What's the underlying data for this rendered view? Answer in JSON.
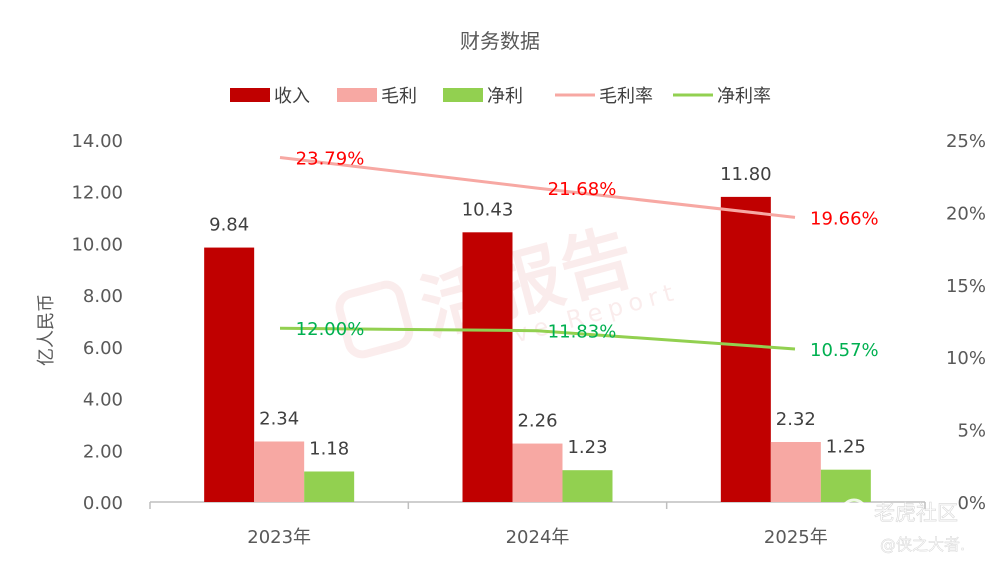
{
  "chart_data": {
    "type": "bar",
    "title": "财务数据",
    "ylabel": "亿人民币",
    "ylim": [
      0,
      14
    ],
    "y2lim": [
      0,
      25
    ],
    "y_ticks": [
      "0.00",
      "2.00",
      "4.00",
      "6.00",
      "8.00",
      "10.00",
      "12.00",
      "14.00"
    ],
    "y2_ticks": [
      "0%",
      "5%",
      "10%",
      "15%",
      "20%",
      "25%"
    ],
    "categories": [
      "2023年",
      "2024年",
      "2025年"
    ],
    "legend_position": "top",
    "series": [
      {
        "name": "收入",
        "kind": "bar",
        "color": "#c00000",
        "values": [
          9.84,
          10.43,
          11.8
        ],
        "labels": [
          "9.84",
          "10.43",
          "11.80"
        ]
      },
      {
        "name": "毛利",
        "kind": "bar",
        "color": "#f7a8a3",
        "values": [
          2.34,
          2.26,
          2.32
        ],
        "labels": [
          "2.34",
          "2.26",
          "2.32"
        ]
      },
      {
        "name": "净利",
        "kind": "bar",
        "color": "#92d050",
        "values": [
          1.18,
          1.23,
          1.25
        ],
        "labels": [
          "1.18",
          "1.23",
          "1.25"
        ]
      },
      {
        "name": "毛利率",
        "kind": "line",
        "axis": "right",
        "color": "#f7a8a3",
        "label_color": "#ff0000",
        "values": [
          23.79,
          21.68,
          19.66
        ],
        "labels": [
          "23.79%",
          "21.68%",
          "19.66%"
        ]
      },
      {
        "name": "净利率",
        "kind": "line",
        "axis": "right",
        "color": "#92d050",
        "label_color": "#00b050",
        "values": [
          12.0,
          11.83,
          10.57
        ],
        "labels": [
          "12.00%",
          "11.83%",
          "10.57%"
        ]
      }
    ]
  },
  "watermarks": {
    "main_cn": "活报告",
    "main_en": "Live Report",
    "brand": "老虎社区",
    "author": "@侠之大者."
  }
}
